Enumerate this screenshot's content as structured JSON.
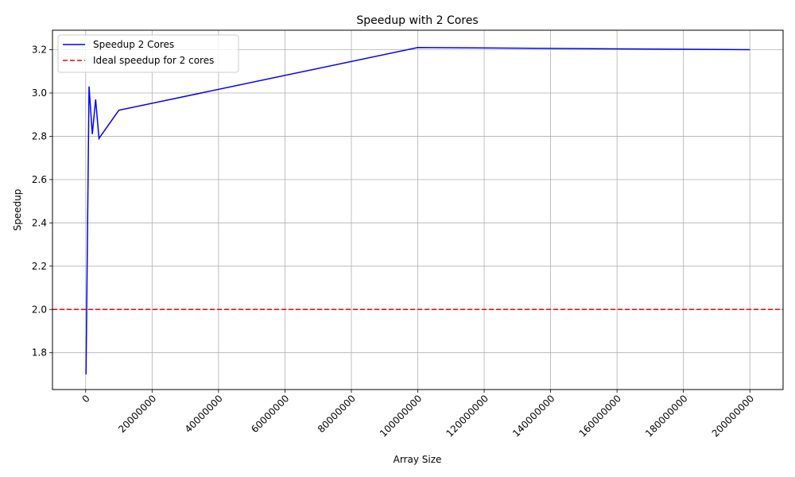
{
  "chart_data": {
    "type": "line",
    "title": "Speedup with 2 Cores",
    "xlabel": "Array Size",
    "ylabel": "Speedup",
    "xlim": [
      -10000000,
      210000000
    ],
    "ylim": [
      1.63,
      3.29
    ],
    "grid": true,
    "legend_position": "top-left",
    "x_ticks": [
      0,
      20000000,
      40000000,
      60000000,
      80000000,
      100000000,
      120000000,
      140000000,
      160000000,
      180000000,
      200000000
    ],
    "x_tick_labels": [
      "0",
      "20000000",
      "40000000",
      "60000000",
      "80000000",
      "100000000",
      "120000000",
      "140000000",
      "160000000",
      "180000000",
      "200000000"
    ],
    "y_ticks": [
      1.8,
      2.0,
      2.2,
      2.4,
      2.6,
      2.8,
      3.0,
      3.2
    ],
    "y_tick_labels": [
      "1.8",
      "2.0",
      "2.2",
      "2.4",
      "2.6",
      "2.8",
      "3.0",
      "3.2"
    ],
    "series": [
      {
        "name": "Speedup 2 Cores",
        "color": "#0000ff",
        "style": "solid",
        "x": [
          100000,
          1000000,
          2000000,
          3000000,
          4000000,
          10000000,
          100000000,
          200000000
        ],
        "y": [
          1.7,
          3.03,
          2.81,
          2.97,
          2.79,
          2.92,
          3.21,
          3.2
        ]
      }
    ],
    "reference_lines": [
      {
        "name": "Ideal speedup for 2 cores",
        "color": "#ff0000",
        "style": "dashed",
        "y": 2.0
      }
    ]
  }
}
